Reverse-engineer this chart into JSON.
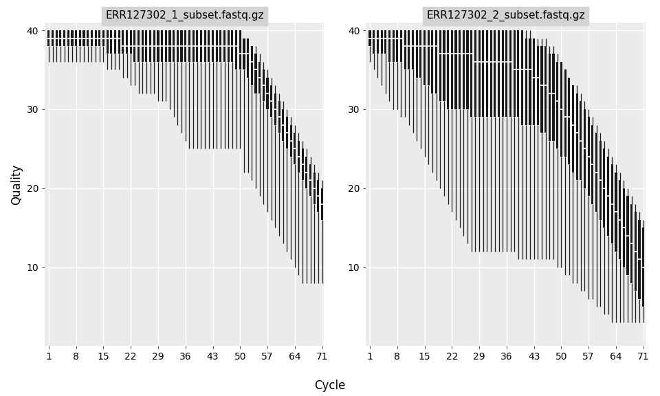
{
  "panel1_title": "ERR127302_1_subset.fastq.gz",
  "panel2_title": "ERR127302_2_subset.fastq.gz",
  "xlabel": "Cycle",
  "ylabel": "Quality",
  "cycles": 71,
  "ylim": [
    0,
    41
  ],
  "yticks": [
    10,
    20,
    30,
    40
  ],
  "xticks": [
    1,
    8,
    15,
    22,
    29,
    36,
    43,
    50,
    57,
    64,
    71
  ],
  "bg_color": "#EBEBEB",
  "box_color": "#1a1a1a",
  "whisker_color": "#1a1a1a",
  "median_color": "#ffffff",
  "title_bg": "#D3D3D3",
  "grid_color": "#ffffff",
  "panel1_whishi": [
    40,
    40,
    40,
    40,
    40,
    40,
    40,
    40,
    40,
    40,
    40,
    40,
    40,
    40,
    40,
    40,
    40,
    40,
    40,
    40,
    40,
    40,
    40,
    40,
    40,
    40,
    40,
    40,
    40,
    40,
    40,
    40,
    40,
    40,
    40,
    40,
    40,
    40,
    40,
    40,
    40,
    40,
    40,
    40,
    40,
    40,
    40,
    40,
    40,
    40,
    39,
    39,
    38,
    38,
    37,
    36,
    35,
    34,
    33,
    32,
    31,
    30,
    29,
    28,
    27,
    26,
    25,
    24,
    23,
    22,
    21
  ],
  "panel1_q3": [
    40,
    40,
    40,
    40,
    40,
    40,
    40,
    40,
    40,
    40,
    40,
    40,
    40,
    40,
    40,
    40,
    40,
    40,
    40,
    40,
    40,
    40,
    40,
    40,
    40,
    40,
    40,
    40,
    40,
    40,
    40,
    40,
    40,
    40,
    40,
    40,
    40,
    40,
    40,
    40,
    40,
    40,
    40,
    40,
    40,
    40,
    40,
    40,
    40,
    40,
    39,
    39,
    38,
    37,
    36,
    35,
    34,
    33,
    32,
    31,
    30,
    29,
    28,
    27,
    26,
    25,
    24,
    23,
    22,
    21,
    20
  ],
  "panel1_median": [
    39,
    39,
    39,
    39,
    39,
    39,
    39,
    39,
    39,
    39,
    39,
    39,
    39,
    39,
    39,
    39,
    39,
    39,
    39,
    38,
    38,
    38,
    38,
    38,
    38,
    38,
    38,
    38,
    38,
    38,
    38,
    38,
    38,
    38,
    38,
    38,
    38,
    38,
    38,
    38,
    38,
    38,
    38,
    38,
    38,
    38,
    38,
    38,
    38,
    37,
    37,
    37,
    36,
    35,
    34,
    33,
    32,
    31,
    30,
    29,
    28,
    27,
    26,
    25,
    24,
    23,
    22,
    21,
    20,
    19,
    18
  ],
  "panel1_q1": [
    38,
    38,
    38,
    38,
    38,
    38,
    38,
    38,
    38,
    38,
    38,
    38,
    38,
    38,
    38,
    37,
    37,
    37,
    37,
    37,
    37,
    37,
    36,
    36,
    36,
    36,
    36,
    36,
    36,
    36,
    36,
    36,
    36,
    36,
    36,
    36,
    36,
    36,
    36,
    36,
    36,
    36,
    36,
    36,
    36,
    36,
    36,
    36,
    35,
    35,
    35,
    34,
    33,
    32,
    32,
    31,
    30,
    29,
    28,
    27,
    26,
    25,
    24,
    23,
    22,
    21,
    20,
    19,
    18,
    17,
    16
  ],
  "panel1_whislo": [
    36,
    36,
    36,
    36,
    36,
    36,
    36,
    36,
    36,
    36,
    36,
    36,
    36,
    36,
    36,
    35,
    35,
    35,
    35,
    34,
    34,
    33,
    33,
    32,
    32,
    32,
    32,
    32,
    31,
    31,
    31,
    30,
    29,
    28,
    27,
    26,
    25,
    25,
    25,
    25,
    25,
    25,
    25,
    25,
    25,
    25,
    25,
    25,
    25,
    25,
    22,
    22,
    21,
    20,
    19,
    18,
    17,
    16,
    15,
    14,
    13,
    12,
    11,
    10,
    9,
    8,
    8,
    8,
    8,
    8,
    8
  ],
  "panel2_whishi": [
    40,
    40,
    40,
    40,
    40,
    40,
    40,
    40,
    40,
    40,
    40,
    40,
    40,
    40,
    40,
    40,
    40,
    40,
    40,
    40,
    40,
    40,
    40,
    40,
    40,
    40,
    40,
    40,
    40,
    40,
    40,
    40,
    40,
    40,
    40,
    40,
    40,
    40,
    40,
    40,
    40,
    40,
    39,
    39,
    39,
    39,
    38,
    38,
    37,
    36,
    35,
    34,
    33,
    33,
    32,
    31,
    30,
    29,
    28,
    27,
    26,
    25,
    24,
    23,
    22,
    21,
    20,
    19,
    18,
    17,
    16
  ],
  "panel2_q3": [
    40,
    40,
    40,
    40,
    40,
    40,
    40,
    40,
    40,
    40,
    40,
    40,
    40,
    40,
    40,
    40,
    40,
    40,
    40,
    40,
    40,
    40,
    40,
    40,
    40,
    40,
    40,
    40,
    40,
    40,
    40,
    40,
    40,
    40,
    40,
    40,
    40,
    40,
    40,
    40,
    39,
    39,
    39,
    38,
    38,
    38,
    37,
    37,
    36,
    36,
    35,
    34,
    33,
    32,
    31,
    30,
    29,
    28,
    27,
    26,
    25,
    24,
    23,
    22,
    21,
    20,
    19,
    18,
    17,
    16,
    15
  ],
  "panel2_median": [
    39,
    39,
    39,
    39,
    39,
    39,
    39,
    39,
    39,
    38,
    38,
    38,
    38,
    38,
    38,
    38,
    38,
    38,
    37,
    37,
    37,
    37,
    37,
    37,
    37,
    37,
    37,
    36,
    36,
    36,
    36,
    36,
    36,
    36,
    36,
    36,
    36,
    35,
    35,
    35,
    35,
    35,
    34,
    34,
    33,
    33,
    32,
    32,
    31,
    30,
    29,
    29,
    28,
    27,
    26,
    25,
    24,
    23,
    22,
    21,
    20,
    19,
    18,
    17,
    16,
    15,
    14,
    13,
    12,
    11,
    10
  ],
  "panel2_q1": [
    38,
    37,
    37,
    37,
    37,
    36,
    36,
    36,
    36,
    35,
    35,
    35,
    34,
    34,
    33,
    33,
    32,
    32,
    31,
    31,
    30,
    30,
    30,
    30,
    30,
    30,
    29,
    29,
    29,
    29,
    29,
    29,
    29,
    29,
    29,
    29,
    29,
    29,
    29,
    28,
    28,
    28,
    28,
    28,
    27,
    27,
    26,
    26,
    25,
    24,
    24,
    23,
    22,
    21,
    21,
    20,
    19,
    18,
    17,
    16,
    15,
    14,
    13,
    12,
    11,
    10,
    9,
    8,
    7,
    6,
    5
  ],
  "panel2_whislo": [
    36,
    35,
    34,
    33,
    32,
    31,
    30,
    30,
    29,
    29,
    28,
    27,
    26,
    25,
    24,
    23,
    22,
    21,
    20,
    19,
    18,
    17,
    16,
    15,
    14,
    13,
    12,
    12,
    12,
    12,
    12,
    12,
    12,
    12,
    12,
    12,
    12,
    12,
    11,
    11,
    11,
    11,
    11,
    11,
    11,
    11,
    11,
    11,
    10,
    10,
    9,
    9,
    8,
    8,
    7,
    7,
    6,
    6,
    5,
    5,
    4,
    4,
    3,
    3,
    3,
    3,
    3,
    3,
    3,
    3,
    3
  ]
}
